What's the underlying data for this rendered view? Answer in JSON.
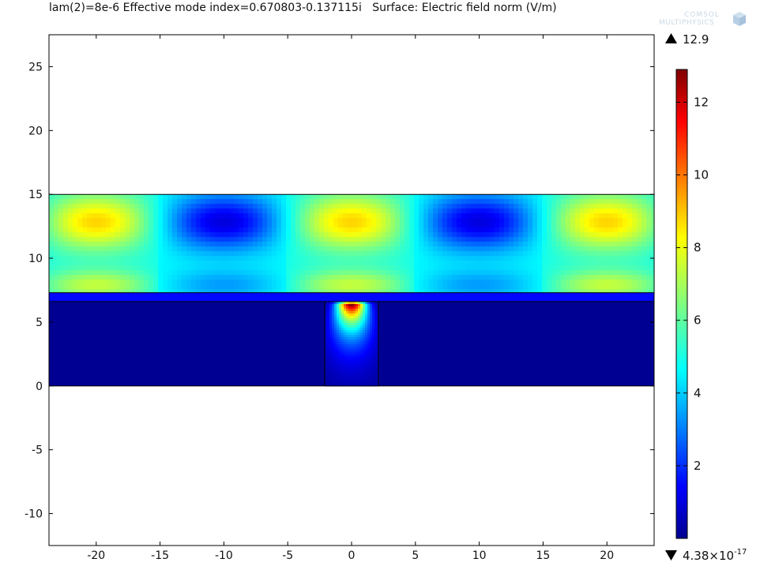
{
  "title": "lam(2)=8e-6 Effective mode index=0.670803-0.137115i   Surface: Electric field norm (V/m)",
  "logo": {
    "line1": "COMSOL",
    "line2": "MULTIPHYSICS"
  },
  "colorbar": {
    "max_label": "12.9",
    "min_label_mantissa": "4.38×10",
    "min_label_exponent": "-17",
    "ticks": [
      "2",
      "4",
      "6",
      "8",
      "10",
      "12"
    ],
    "colormap": [
      "#00008f",
      "#0000ff",
      "#00ffff",
      "#ffff00",
      "#ff0000",
      "#800000"
    ]
  },
  "chart_data": {
    "type": "heatmap",
    "title": "lam(2)=8e-6 Effective mode index=0.670803-0.137115i   Surface: Electric field norm (V/m)",
    "xlabel": "",
    "ylabel": "",
    "xlim": [
      -23.7,
      23.7
    ],
    "ylim": [
      -12.5,
      27.5
    ],
    "x_ticks": [
      -20,
      -15,
      -10,
      -5,
      0,
      5,
      10,
      15,
      20
    ],
    "y_ticks": [
      -10,
      -5,
      0,
      5,
      10,
      15,
      20,
      25
    ],
    "value_range": [
      4.38e-17,
      12.9
    ],
    "value_unit": "V/m",
    "regions": [
      {
        "name": "upper layer",
        "x": [
          -23.7,
          23.7
        ],
        "y": [
          7.3,
          15.0
        ],
        "pattern": "standing wave, maxima ≈9.5 at x = -20, -10, 0, 10, 20; minima ≈1 at x = -15, -5, 5, 15"
      },
      {
        "name": "thin layer",
        "x": [
          -23.7,
          23.7
        ],
        "y": [
          6.6,
          7.3
        ],
        "value": 1.5
      },
      {
        "name": "substrate",
        "x": [
          -23.7,
          23.7
        ],
        "y": [
          0,
          6.6
        ],
        "value": 0.05
      },
      {
        "name": "core",
        "x": [
          -2.1,
          2.1
        ],
        "y": [
          0,
          6.6
        ],
        "peak": 12.9,
        "peak_y": 6.3
      }
    ]
  }
}
